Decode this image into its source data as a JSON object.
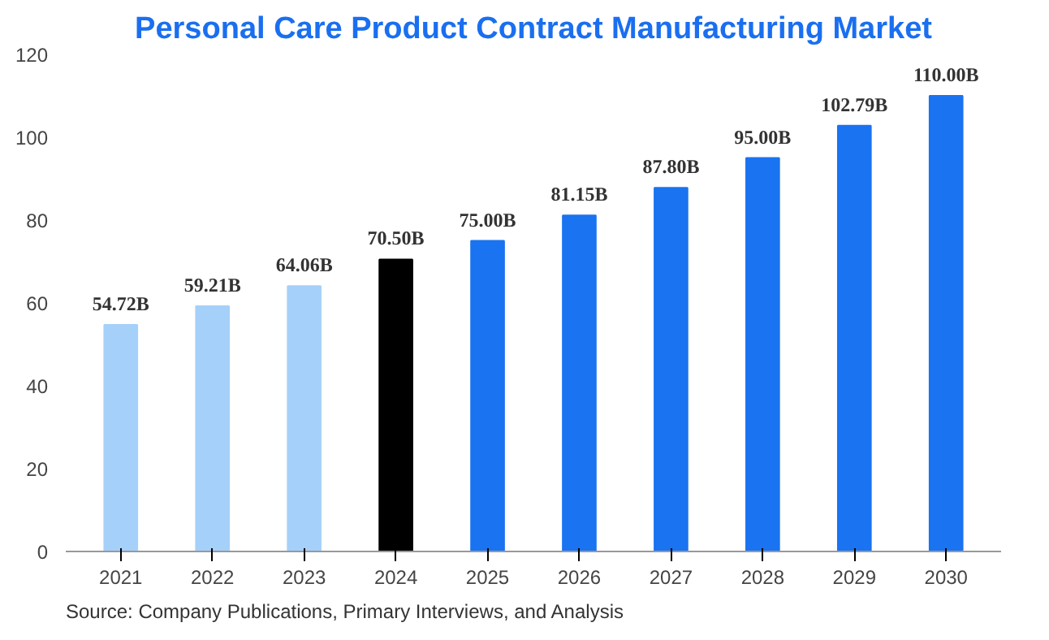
{
  "chart_data": {
    "type": "bar",
    "title": "Personal Care Product Contract Manufacturing Market",
    "categories": [
      "2021",
      "2022",
      "2023",
      "2024",
      "2025",
      "2026",
      "2027",
      "2028",
      "2029",
      "2030"
    ],
    "values": [
      54.72,
      59.21,
      64.06,
      70.5,
      75.0,
      81.15,
      87.8,
      95.0,
      102.79,
      110.0
    ],
    "colors": [
      "#a5d0fa",
      "#a5d0fa",
      "#a5d0fa",
      "#000000",
      "#1a73f0",
      "#1a73f0",
      "#1a73f0",
      "#1a73f0",
      "#1a73f0",
      "#1a73f0"
    ],
    "value_labels": [
      "54.72B",
      "59.21B",
      "64.06B",
      "70.50B",
      "75.00B",
      "81.15B",
      "87.80B",
      "95.00B",
      "102.79B",
      "110.00B"
    ],
    "ylim": [
      0,
      120
    ],
    "yticks": [
      0,
      20,
      40,
      60,
      80,
      100,
      120
    ],
    "grid": false,
    "annotations": [
      "Source: Company Publications, Primary Interviews, and Analysis"
    ]
  }
}
